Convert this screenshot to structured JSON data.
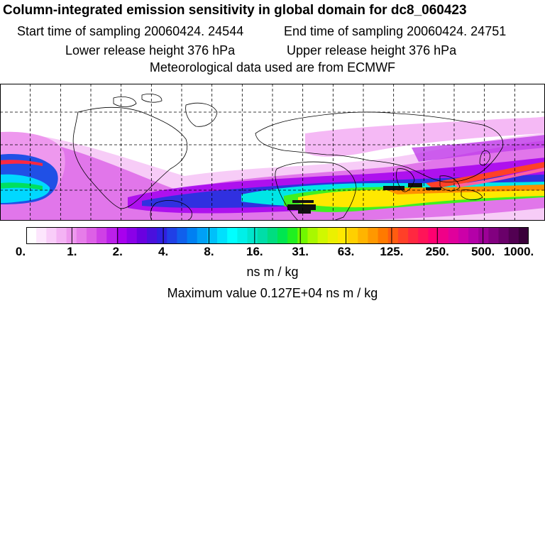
{
  "header": {
    "title": "Column-integrated emission sensitivity in global domain for dc8_060423",
    "start_time": "Start time of sampling 20060424. 24544",
    "end_time": "End time of sampling 20060424. 24751",
    "lower_release": "Lower release height  376 hPa",
    "upper_release": "Upper release height  376 hPa",
    "meteo": "Meteorological data used are from ECMWF"
  },
  "colorbar": {
    "labels": [
      "0.",
      "1.",
      "2.",
      "4.",
      "8.",
      "16.",
      "31.",
      "63.",
      "125.",
      "250.",
      "500.",
      "1000."
    ],
    "units": "ns m / kg",
    "colors": [
      "#ffffff",
      "#fde6fd",
      "#f9cdf9",
      "#f4b3f4",
      "#ee98ee",
      "#e67de9",
      "#dd60e6",
      "#cf40e6",
      "#bb20ea",
      "#a800ee",
      "#8a00e8",
      "#6a00e0",
      "#4a10dd",
      "#3020e0",
      "#2040e6",
      "#1060ec",
      "#0080f2",
      "#00a0f6",
      "#00c0fa",
      "#00e0fd",
      "#00ffff",
      "#00f0e8",
      "#00e6cc",
      "#00dda8",
      "#00dd80",
      "#00e650",
      "#20f020",
      "#70f800",
      "#a8f800",
      "#d0f800",
      "#ecf000",
      "#ffe800",
      "#ffd000",
      "#ffb400",
      "#ff9800",
      "#ff7a00",
      "#ff5c10",
      "#ff4028",
      "#ff2840",
      "#ff1458",
      "#ff0070",
      "#f00088",
      "#e0009c",
      "#cc00a8",
      "#b400a8",
      "#9c0096",
      "#820080",
      "#6a006a",
      "#520052",
      "#3a003a"
    ]
  },
  "max_value_text": "Maximum value  0.127E+04 ns m / kg"
}
